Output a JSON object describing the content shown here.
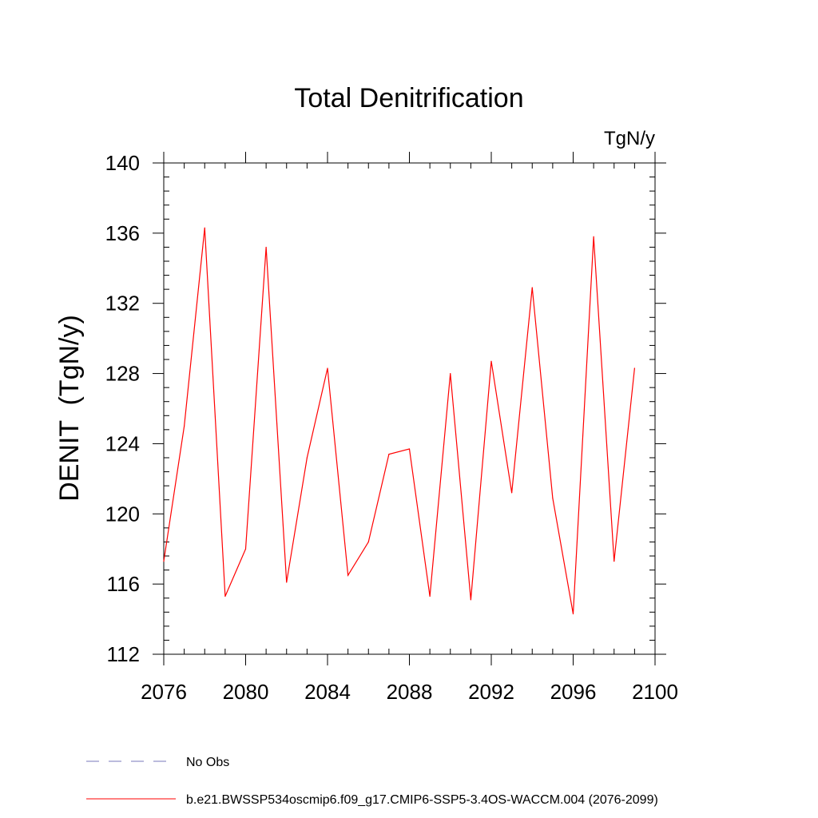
{
  "chart_data": {
    "type": "line",
    "title": "Total Denitrification",
    "units_label": "TgN/y",
    "ylabel": "DENIT  (TgN/y)",
    "xlabel": "",
    "xlim": [
      2076,
      2100
    ],
    "ylim": [
      112,
      140
    ],
    "x_ticks": [
      2076,
      2080,
      2084,
      2088,
      2092,
      2096,
      2100
    ],
    "y_ticks": [
      112,
      116,
      120,
      124,
      128,
      132,
      136,
      140
    ],
    "x_minor_step": 1,
    "y_minor_step": 0.8,
    "grid": false,
    "legend_position": "bottom-left",
    "series": [
      {
        "name": "b.e21.BWSSP534oscmip6.f09_g17.CMIP6-SSP5-3.4OS-WACCM.004 (2076-2099)",
        "color": "#ff0000",
        "style": "solid",
        "x": [
          2076,
          2077,
          2078,
          2079,
          2080,
          2081,
          2082,
          2083,
          2084,
          2085,
          2086,
          2087,
          2088,
          2089,
          2090,
          2091,
          2092,
          2093,
          2094,
          2095,
          2096,
          2097,
          2098,
          2099
        ],
        "values": [
          117.3,
          125.0,
          136.3,
          115.3,
          118.0,
          135.2,
          116.1,
          123.2,
          128.3,
          116.5,
          118.4,
          123.4,
          123.7,
          115.3,
          128.0,
          115.1,
          128.7,
          121.2,
          132.9,
          120.9,
          114.3,
          135.8,
          117.3,
          128.3
        ]
      }
    ],
    "legend": [
      {
        "label": "No Obs",
        "color": "#7777bb",
        "style": "dashed"
      },
      {
        "label": "b.e21.BWSSP534oscmip6.f09_g17.CMIP6-SSP5-3.4OS-WACCM.004 (2076-2099)",
        "color": "#ff0000",
        "style": "solid"
      }
    ]
  }
}
